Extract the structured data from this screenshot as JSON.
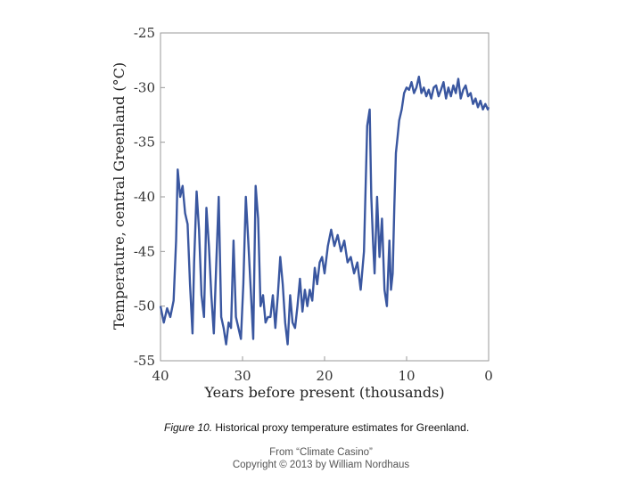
{
  "chart_data": {
    "type": "line",
    "title": "",
    "xlabel": "Years before present (thousands)",
    "ylabel": "Temperature, central Greenland (°C)",
    "xlim": [
      40,
      0
    ],
    "ylim": [
      -55,
      -25
    ],
    "x_ticks": [
      "40",
      "30",
      "20",
      "10",
      "0"
    ],
    "y_ticks": [
      "-25",
      "-30",
      "-35",
      "-40",
      "-45",
      "-50",
      "-55"
    ],
    "grid": false,
    "color": "#3a57a0",
    "series": [
      {
        "x": [
          40.0,
          39.6,
          39.2,
          38.8,
          38.4,
          38.1,
          37.9,
          37.6,
          37.3,
          37.0,
          36.7,
          36.4,
          36.1,
          35.9,
          35.6,
          35.3,
          35.0,
          34.7,
          34.4,
          34.1,
          33.8,
          33.5,
          33.2,
          32.9,
          32.6,
          32.3,
          32.0,
          31.7,
          31.4,
          31.1,
          30.8,
          30.5,
          30.2,
          29.9,
          29.6,
          29.3,
          29.0,
          28.7,
          28.4,
          28.1,
          27.8,
          27.5,
          27.2,
          26.9,
          26.6,
          26.3,
          26.0,
          25.7,
          25.4,
          25.1,
          24.8,
          24.5,
          24.2,
          23.9,
          23.6,
          23.3,
          23.0,
          22.7,
          22.4,
          22.1,
          21.8,
          21.5,
          21.2,
          20.9,
          20.6,
          20.3,
          20.0,
          19.6,
          19.2,
          18.8,
          18.4,
          18.0,
          17.6,
          17.2,
          16.8,
          16.4,
          16.0,
          15.6,
          15.2,
          14.8,
          14.5,
          14.3,
          14.1,
          13.9,
          13.6,
          13.3,
          13.0,
          12.7,
          12.4,
          12.1,
          11.9,
          11.7,
          11.5,
          11.3,
          11.1,
          10.9,
          10.6,
          10.3,
          10.0,
          9.7,
          9.4,
          9.1,
          8.8,
          8.5,
          8.2,
          7.9,
          7.6,
          7.3,
          7.0,
          6.7,
          6.4,
          6.1,
          5.8,
          5.5,
          5.2,
          4.9,
          4.6,
          4.3,
          4.0,
          3.7,
          3.4,
          3.1,
          2.8,
          2.5,
          2.2,
          1.9,
          1.6,
          1.3,
          1.0,
          0.7,
          0.4,
          0.1,
          0.0
        ],
        "values": [
          -50.0,
          -51.5,
          -50.2,
          -51.0,
          -49.5,
          -44.0,
          -37.5,
          -40.0,
          -39.0,
          -41.5,
          -42.5,
          -48.0,
          -52.5,
          -46.0,
          -39.5,
          -43.0,
          -49.0,
          -51.0,
          -41.0,
          -44.5,
          -49.0,
          -52.5,
          -46.0,
          -40.0,
          -51.0,
          -52.0,
          -53.5,
          -51.5,
          -52.0,
          -44.0,
          -51.0,
          -52.0,
          -53.0,
          -48.0,
          -40.0,
          -44.0,
          -48.5,
          -53.0,
          -39.0,
          -42.0,
          -50.0,
          -49.0,
          -51.5,
          -51.0,
          -51.0,
          -49.0,
          -52.0,
          -49.0,
          -45.5,
          -48.0,
          -51.5,
          -53.5,
          -49.0,
          -51.5,
          -52.0,
          -50.0,
          -47.5,
          -50.5,
          -48.5,
          -50.0,
          -48.5,
          -49.5,
          -46.5,
          -48.0,
          -46.0,
          -45.5,
          -47.0,
          -44.5,
          -43.0,
          -44.5,
          -43.5,
          -45.0,
          -44.0,
          -46.0,
          -45.5,
          -47.0,
          -46.0,
          -48.5,
          -45.0,
          -33.5,
          -32.0,
          -40.0,
          -44.0,
          -47.0,
          -40.0,
          -45.5,
          -42.0,
          -48.5,
          -50.0,
          -44.0,
          -48.5,
          -47.0,
          -41.0,
          -36.0,
          -34.5,
          -33.0,
          -32.0,
          -30.5,
          -30.0,
          -30.2,
          -29.5,
          -30.5,
          -30.0,
          -29.0,
          -30.5,
          -30.0,
          -30.8,
          -30.2,
          -31.0,
          -30.0,
          -29.8,
          -30.8,
          -30.2,
          -29.5,
          -31.0,
          -30.0,
          -30.8,
          -29.8,
          -30.5,
          -29.2,
          -31.0,
          -30.2,
          -29.8,
          -30.8,
          -30.5,
          -31.5,
          -31.0,
          -31.8,
          -31.2,
          -32.0,
          -31.5,
          -32.0,
          -31.8
        ]
      }
    ]
  },
  "caption": {
    "label": "Figure 10.",
    "text": " Historical proxy temperature estimates for Greenland."
  },
  "credit": {
    "line1": "From “Climate Casino”",
    "line2": "Copyright © 2013 by William Nordhaus"
  }
}
